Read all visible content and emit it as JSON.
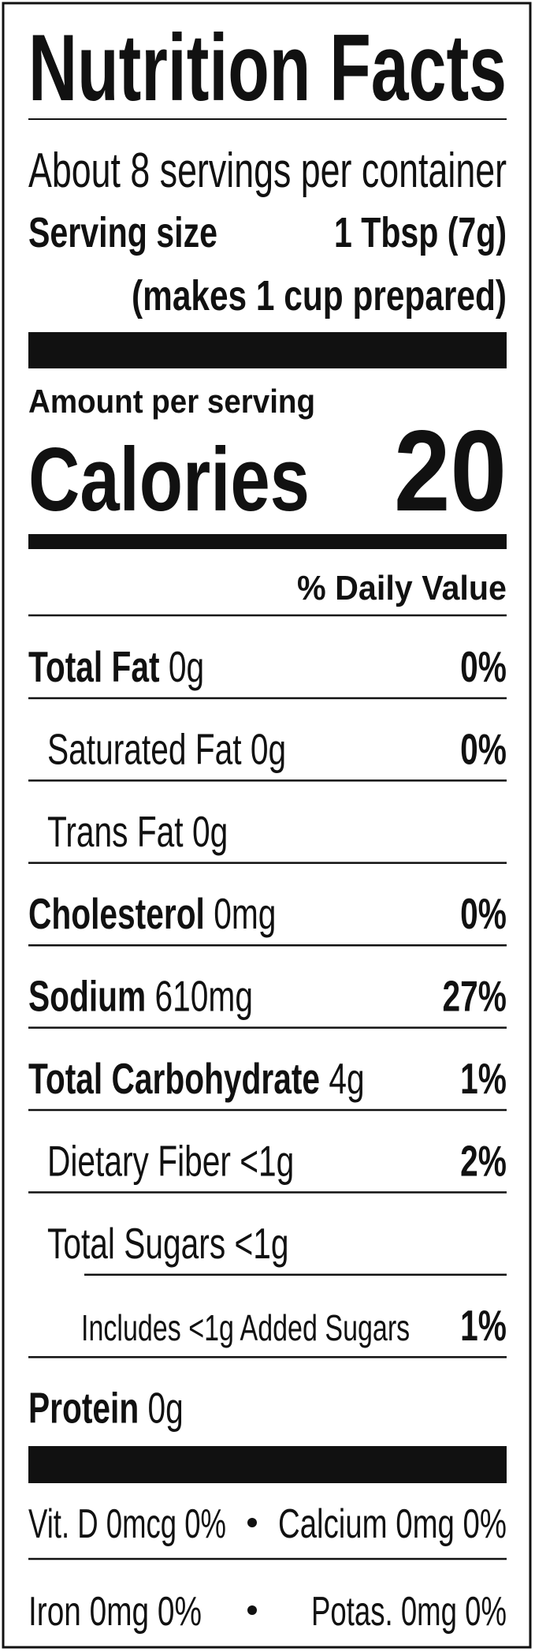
{
  "title": "Nutrition Facts",
  "servings": "About 8 servings per container",
  "serving_size": {
    "label": "Serving size",
    "value": "1 Tbsp (7g)",
    "note": "(makes 1 cup prepared)"
  },
  "amount_per_serving": "Amount per serving",
  "calories": {
    "label": "Calories",
    "value": "20"
  },
  "daily_value_header": "% Daily Value",
  "nutrients": [
    {
      "name": "Total Fat",
      "amount": "0g",
      "dv": "0%",
      "level": 0
    },
    {
      "name": "Saturated Fat",
      "amount": "0g",
      "dv": "0%",
      "level": 1
    },
    {
      "name": "Trans Fat",
      "amount": "0g",
      "level": 1
    },
    {
      "name": "Cholesterol",
      "amount": "0mg",
      "dv": "0%",
      "level": 0
    },
    {
      "name": "Sodium",
      "amount": "610mg",
      "dv": "27%",
      "level": 0
    },
    {
      "name": "Total Carbohydrate",
      "amount": "4g",
      "dv": "1%",
      "level": 0
    },
    {
      "name": "Dietary Fiber",
      "amount": "<1g",
      "dv": "2%",
      "level": 1
    },
    {
      "name": "Total Sugars",
      "amount": "<1g",
      "level": 1
    },
    {
      "name": "Includes <1g Added Sugars",
      "dv": "1%",
      "level": 2
    },
    {
      "name": "Protein",
      "amount": "0g",
      "level": 0
    }
  ],
  "micronutrients": [
    [
      "Vit. D 0mcg 0%",
      "Calcium 0mg 0%"
    ],
    [
      "Iron 0mg 0%",
      "Potas. 0mg 0%"
    ]
  ]
}
